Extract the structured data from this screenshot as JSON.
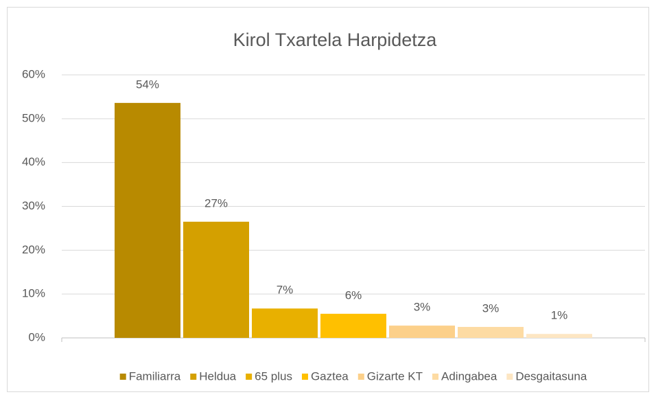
{
  "chart_data": {
    "type": "bar",
    "title": "Kirol Txartela Harpidetza",
    "series": [
      {
        "name": "Familiarra",
        "color": "#b88a00",
        "values": [
          53.6
        ],
        "value_labels": [
          "54%"
        ]
      },
      {
        "name": "Heldua",
        "color": "#d4a000",
        "values": [
          26.5
        ],
        "value_labels": [
          "27%"
        ]
      },
      {
        "name": "65 plus",
        "color": "#e8b000",
        "values": [
          6.7
        ],
        "value_labels": [
          "7%"
        ]
      },
      {
        "name": "Gaztea",
        "color": "#ffc000",
        "values": [
          5.5
        ],
        "value_labels": [
          "6%"
        ]
      },
      {
        "name": "Gizarte KT",
        "color": "#fcd08a",
        "values": [
          2.8
        ],
        "value_labels": [
          "3%"
        ]
      },
      {
        "name": "Adingabea",
        "color": "#fddba3",
        "values": [
          2.5
        ],
        "value_labels": [
          "3%"
        ]
      },
      {
        "name": "Desgaitasuna",
        "color": "#fde6c3",
        "values": [
          0.9
        ],
        "value_labels": [
          "1%"
        ]
      }
    ],
    "ylim": [
      0,
      60
    ],
    "yticks": [
      {
        "value": 0,
        "label": "0%"
      },
      {
        "value": 10,
        "label": "10%"
      },
      {
        "value": 20,
        "label": "20%"
      },
      {
        "value": 30,
        "label": "30%"
      },
      {
        "value": 40,
        "label": "40%"
      },
      {
        "value": 50,
        "label": "50%"
      },
      {
        "value": 60,
        "label": "60%"
      }
    ],
    "grid": true,
    "legend": "bottom"
  }
}
